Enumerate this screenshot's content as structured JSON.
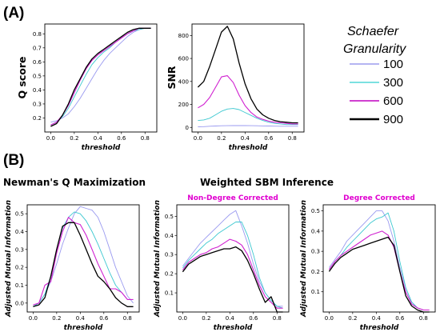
{
  "figure": {
    "panel_a_letter": "(A)",
    "panel_b_letter": "(B)",
    "heading_newman": "Newman's Q Maximization",
    "heading_sbm": "Weighted SBM Inference"
  },
  "legend": {
    "title_line1": "Schaefer",
    "title_line2": "Granularity",
    "entries": [
      {
        "label": "100",
        "color": "#6a6ae6"
      },
      {
        "label": "300",
        "color": "#2ccfcf"
      },
      {
        "label": "600",
        "color": "#c000c0"
      },
      {
        "label": "900",
        "color": "#000000"
      }
    ]
  },
  "colors": {
    "100": "#9a9af0",
    "300": "#3cc8d0",
    "600": "#d020d0",
    "900": "#000000",
    "subtitle": "#e000d0"
  },
  "chart_data": [
    {
      "id": "qscore",
      "type": "line",
      "xlabel": "threshold",
      "ylabel": "Q score",
      "xlim": [
        -0.05,
        0.9
      ],
      "ylim": [
        0.1,
        0.87
      ],
      "xticks": [
        "0.0",
        "0.2",
        "0.4",
        "0.6",
        "0.8"
      ],
      "yticks": [
        "0.2",
        "0.3",
        "0.4",
        "0.5",
        "0.6",
        "0.7",
        "0.8"
      ],
      "x": [
        0.0,
        0.05,
        0.1,
        0.15,
        0.2,
        0.25,
        0.3,
        0.35,
        0.4,
        0.45,
        0.5,
        0.55,
        0.6,
        0.65,
        0.7,
        0.75,
        0.8,
        0.85
      ],
      "series": [
        {
          "name": "100",
          "values": [
            0.17,
            0.18,
            0.2,
            0.23,
            0.28,
            0.34,
            0.41,
            0.48,
            0.55,
            0.61,
            0.66,
            0.7,
            0.74,
            0.78,
            0.81,
            0.83,
            0.84,
            0.84
          ]
        },
        {
          "name": "300",
          "values": [
            0.15,
            0.17,
            0.21,
            0.27,
            0.35,
            0.43,
            0.51,
            0.58,
            0.63,
            0.67,
            0.7,
            0.74,
            0.77,
            0.8,
            0.82,
            0.83,
            0.84,
            0.84
          ]
        },
        {
          "name": "600",
          "values": [
            0.15,
            0.17,
            0.22,
            0.29,
            0.38,
            0.47,
            0.55,
            0.61,
            0.65,
            0.68,
            0.71,
            0.74,
            0.77,
            0.8,
            0.82,
            0.84,
            0.84,
            0.84
          ]
        },
        {
          "name": "900",
          "values": [
            0.14,
            0.16,
            0.22,
            0.3,
            0.4,
            0.48,
            0.56,
            0.62,
            0.66,
            0.69,
            0.72,
            0.75,
            0.78,
            0.81,
            0.83,
            0.84,
            0.84,
            0.84
          ]
        }
      ]
    },
    {
      "id": "snr",
      "type": "line",
      "xlabel": "threshold",
      "ylabel": "SNR",
      "xlim": [
        -0.05,
        0.9
      ],
      "ylim": [
        -40,
        900
      ],
      "xticks": [
        "0.0",
        "0.2",
        "0.4",
        "0.6",
        "0.8"
      ],
      "yticks": [
        "0",
        "200",
        "400",
        "600",
        "800"
      ],
      "x": [
        0.0,
        0.05,
        0.1,
        0.15,
        0.2,
        0.25,
        0.3,
        0.35,
        0.4,
        0.45,
        0.5,
        0.55,
        0.6,
        0.65,
        0.7,
        0.75,
        0.8,
        0.85
      ],
      "series": [
        {
          "name": "100",
          "values": [
            5,
            7,
            10,
            12,
            14,
            15,
            16,
            16,
            16,
            15,
            14,
            13,
            12,
            11,
            10,
            10,
            10,
            10
          ]
        },
        {
          "name": "300",
          "values": [
            60,
            65,
            80,
            110,
            140,
            160,
            165,
            155,
            130,
            105,
            80,
            60,
            45,
            35,
            30,
            25,
            25,
            25
          ]
        },
        {
          "name": "600",
          "values": [
            170,
            200,
            260,
            350,
            440,
            450,
            390,
            280,
            190,
            130,
            90,
            70,
            55,
            45,
            40,
            35,
            30,
            30
          ]
        },
        {
          "name": "900",
          "values": [
            350,
            400,
            530,
            680,
            830,
            880,
            770,
            560,
            380,
            250,
            160,
            110,
            80,
            60,
            50,
            45,
            40,
            40
          ]
        }
      ]
    },
    {
      "id": "newman",
      "type": "line",
      "xlabel": "threshold",
      "ylabel": "Adjusted Mutual Information",
      "xlim": [
        -0.05,
        0.9
      ],
      "ylim": [
        -0.05,
        0.55
      ],
      "xticks": [
        "0.0",
        "0.2",
        "0.4",
        "0.6",
        "0.8"
      ],
      "yticks": [
        "0.0",
        "0.1",
        "0.2",
        "0.3",
        "0.4",
        "0.5"
      ],
      "x": [
        0.0,
        0.05,
        0.1,
        0.15,
        0.2,
        0.25,
        0.3,
        0.35,
        0.4,
        0.45,
        0.5,
        0.55,
        0.6,
        0.65,
        0.7,
        0.75,
        0.8,
        0.85
      ],
      "series": [
        {
          "name": "100",
          "values": [
            -0.02,
            0.0,
            0.05,
            0.12,
            0.22,
            0.33,
            0.42,
            0.5,
            0.54,
            0.53,
            0.52,
            0.48,
            0.4,
            0.3,
            0.2,
            0.12,
            0.04,
            0.0
          ]
        },
        {
          "name": "300",
          "values": [
            -0.02,
            0.0,
            0.05,
            0.15,
            0.3,
            0.42,
            0.48,
            0.51,
            0.5,
            0.46,
            0.4,
            0.33,
            0.25,
            0.17,
            0.1,
            0.06,
            0.02,
            0.02
          ]
        },
        {
          "name": "600",
          "values": [
            -0.01,
            0.0,
            0.1,
            0.12,
            0.28,
            0.4,
            0.48,
            0.45,
            0.44,
            0.38,
            0.3,
            0.22,
            0.15,
            0.08,
            0.08,
            0.06,
            0.02,
            0.02
          ]
        },
        {
          "name": "900",
          "values": [
            -0.02,
            -0.01,
            0.03,
            0.15,
            0.3,
            0.43,
            0.45,
            0.45,
            0.38,
            0.3,
            0.22,
            0.15,
            0.12,
            0.08,
            0.03,
            0.0,
            -0.02,
            -0.02
          ]
        }
      ]
    },
    {
      "id": "sbm_ndc",
      "title": "Non-Degree Corrected",
      "type": "line",
      "xlabel": "threshold",
      "ylabel": "Adjusted Mutual Information",
      "xlim": [
        -0.05,
        0.9
      ],
      "ylim": [
        0.0,
        0.56
      ],
      "xticks": [
        "0.0",
        "0.2",
        "0.4",
        "0.6",
        "0.8"
      ],
      "yticks": [
        "0.1",
        "0.2",
        "0.3",
        "0.4",
        "0.5"
      ],
      "x": [
        0.0,
        0.05,
        0.1,
        0.15,
        0.2,
        0.25,
        0.3,
        0.35,
        0.4,
        0.45,
        0.5,
        0.55,
        0.6,
        0.65,
        0.7,
        0.75,
        0.8,
        0.85
      ],
      "series": [
        {
          "name": "100",
          "values": [
            0.24,
            0.28,
            0.32,
            0.36,
            0.39,
            0.42,
            0.45,
            0.48,
            0.51,
            0.53,
            0.45,
            0.36,
            0.25,
            0.16,
            0.1,
            0.06,
            0.03,
            0.03
          ]
        },
        {
          "name": "300",
          "values": [
            0.23,
            0.27,
            0.3,
            0.33,
            0.36,
            0.38,
            0.41,
            0.43,
            0.45,
            0.47,
            0.47,
            0.4,
            0.3,
            0.18,
            0.1,
            0.06,
            0.03,
            0.02
          ]
        },
        {
          "name": "600",
          "values": [
            0.22,
            0.26,
            0.28,
            0.3,
            0.31,
            0.33,
            0.34,
            0.36,
            0.38,
            0.37,
            0.35,
            0.3,
            0.22,
            0.14,
            0.08,
            0.05,
            0.02,
            0.02
          ]
        },
        {
          "name": "900",
          "values": [
            0.21,
            0.25,
            0.27,
            0.29,
            0.3,
            0.31,
            0.32,
            0.33,
            0.33,
            0.34,
            0.32,
            0.27,
            0.2,
            0.12,
            0.05,
            0.08,
            0.0,
            0.0
          ]
        }
      ]
    },
    {
      "id": "sbm_dc",
      "title": "Degree Corrected",
      "type": "line",
      "xlabel": "threshold",
      "ylabel": "Adjusted Mutual Information",
      "xlim": [
        -0.05,
        0.9
      ],
      "ylim": [
        0.0,
        0.53
      ],
      "xticks": [
        "0.0",
        "0.2",
        "0.4",
        "0.6",
        "0.8"
      ],
      "yticks": [
        "0.1",
        "0.2",
        "0.3",
        "0.4",
        "0.5"
      ],
      "x": [
        0.0,
        0.05,
        0.1,
        0.15,
        0.2,
        0.25,
        0.3,
        0.35,
        0.4,
        0.45,
        0.5,
        0.55,
        0.6,
        0.65,
        0.7,
        0.75,
        0.8,
        0.85
      ],
      "series": [
        {
          "name": "100",
          "values": [
            0.22,
            0.26,
            0.3,
            0.35,
            0.38,
            0.41,
            0.44,
            0.47,
            0.5,
            0.5,
            0.45,
            0.35,
            0.22,
            0.12,
            0.05,
            0.02,
            0.01,
            0.01
          ]
        },
        {
          "name": "300",
          "values": [
            0.21,
            0.25,
            0.28,
            0.32,
            0.35,
            0.38,
            0.41,
            0.44,
            0.46,
            0.47,
            0.49,
            0.4,
            0.25,
            0.12,
            0.05,
            0.02,
            0.01,
            0.01
          ]
        },
        {
          "name": "600",
          "values": [
            0.21,
            0.25,
            0.28,
            0.3,
            0.32,
            0.34,
            0.36,
            0.38,
            0.39,
            0.4,
            0.38,
            0.32,
            0.2,
            0.1,
            0.04,
            0.02,
            0.01,
            0.01
          ]
        },
        {
          "name": "900",
          "values": [
            0.2,
            0.24,
            0.27,
            0.29,
            0.31,
            0.32,
            0.33,
            0.34,
            0.35,
            0.36,
            0.37,
            0.33,
            0.2,
            0.08,
            0.03,
            0.01,
            0.0,
            0.0
          ]
        }
      ]
    }
  ]
}
